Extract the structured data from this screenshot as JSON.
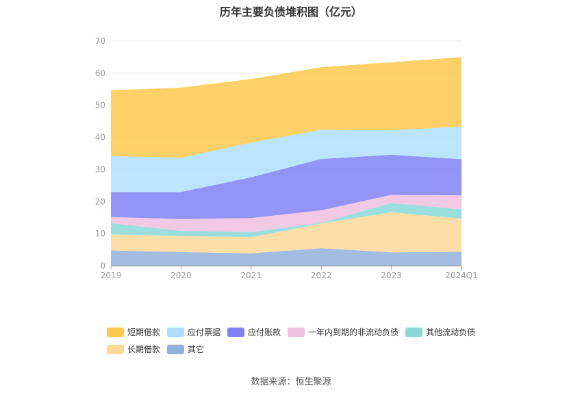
{
  "page": {
    "source_label": "数据来源：恒生聚源"
  },
  "chart_data": {
    "type": "area",
    "stacked": true,
    "title": "历年主要负债堆积图（亿元）",
    "xlabel": "",
    "ylabel": "",
    "categories": [
      "2019",
      "2020",
      "2021",
      "2022",
      "2023",
      "2024Q1"
    ],
    "ylim": [
      0,
      70
    ],
    "yticks": [
      0,
      10,
      20,
      30,
      40,
      50,
      60,
      70
    ],
    "grid": true,
    "legend_position": "bottom",
    "series": [
      {
        "name": "其它",
        "color": "#93b0dc",
        "values": [
          4.8,
          4.3,
          3.9,
          5.5,
          4.2,
          4.4
        ]
      },
      {
        "name": "长期借款",
        "color": "#ffd998",
        "values": [
          5.0,
          5.0,
          5.0,
          7.7,
          12.5,
          10.3
        ]
      },
      {
        "name": "其他流动负债",
        "color": "#8ad8d8",
        "values": [
          3.5,
          1.6,
          1.6,
          0.2,
          2.9,
          2.9
        ]
      },
      {
        "name": "一年内到期的非流动负债",
        "color": "#f0c0df",
        "values": [
          1.9,
          3.7,
          4.4,
          3.9,
          2.5,
          4.4
        ]
      },
      {
        "name": "应付账款",
        "color": "#8083f5",
        "values": [
          7.8,
          8.4,
          12.7,
          16.0,
          12.5,
          11.2
        ]
      },
      {
        "name": "应付票据",
        "color": "#aee0fb",
        "values": [
          11.2,
          10.7,
          10.8,
          9.1,
          7.6,
          10.2
        ]
      },
      {
        "name": "短期借款",
        "color": "#fdc84e",
        "values": [
          20.5,
          21.8,
          19.8,
          19.5,
          21.2,
          21.6
        ]
      }
    ]
  },
  "legend_order": [
    [
      "短期借款",
      "应付票据",
      "应付账款",
      "一年内到期的非流动负债",
      "其他流动负债"
    ],
    [
      "长期借款",
      "其它"
    ]
  ]
}
